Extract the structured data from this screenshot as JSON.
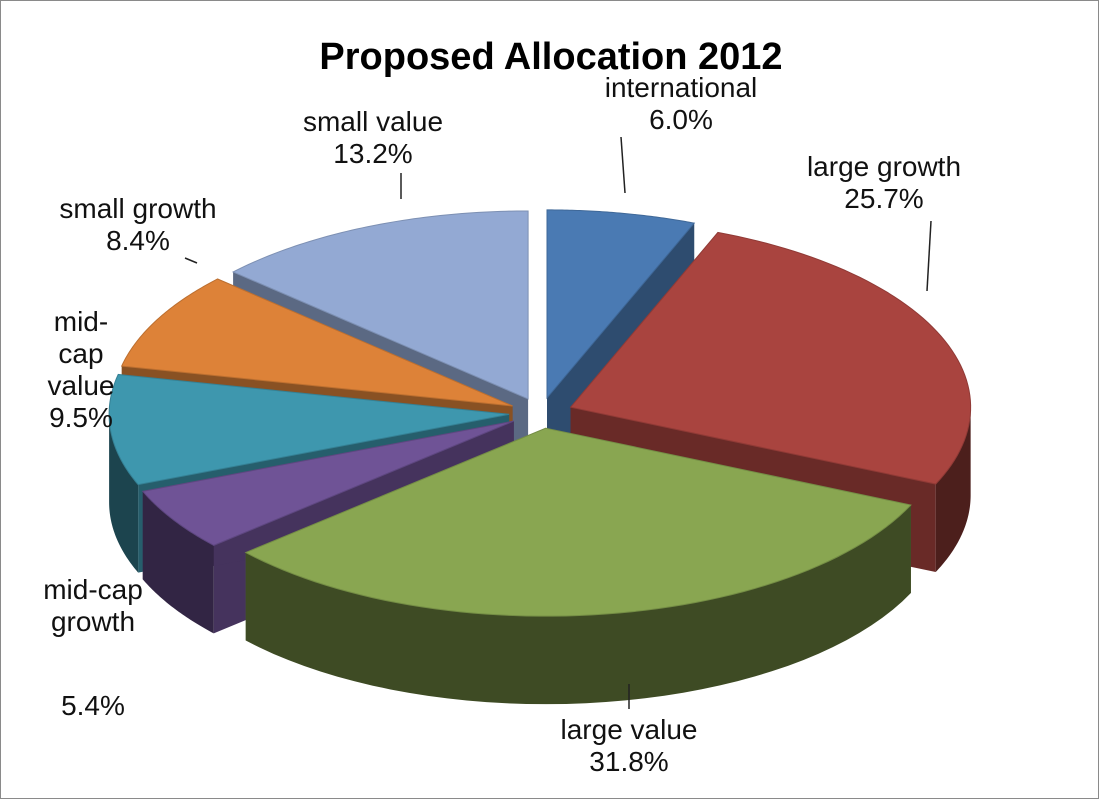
{
  "chart_data": {
    "type": "pie",
    "title": "Proposed Allocation 2012",
    "slices": [
      {
        "name": "international",
        "value": 6.0,
        "value_label": "6.0%",
        "label_lines": [
          "international"
        ],
        "color": "#4a7ab3"
      },
      {
        "name": "large growth",
        "value": 25.7,
        "value_label": "25.7%",
        "label_lines": [
          "large growth"
        ],
        "color": "#a9443f"
      },
      {
        "name": "large value",
        "value": 31.8,
        "value_label": "31.8%",
        "label_lines": [
          "large value"
        ],
        "color": "#89a651"
      },
      {
        "name": "mid-cap growth",
        "value": 5.4,
        "value_label": "5.4%",
        "label_lines": [
          "mid-cap",
          "growth"
        ],
        "color": "#6f5396"
      },
      {
        "name": "mid-cap value",
        "value": 9.5,
        "value_label": "9.5%",
        "label_lines": [
          "mid-",
          "cap",
          "value"
        ],
        "color": "#3e97ae"
      },
      {
        "name": "small growth",
        "value": 8.4,
        "value_label": "8.4%",
        "label_lines": [
          "small growth"
        ],
        "color": "#dd8238"
      },
      {
        "name": "small value",
        "value": 13.2,
        "value_label": "13.2%",
        "label_lines": [
          "small value"
        ],
        "color": "#93a9d3"
      }
    ],
    "exploded": true,
    "three_d": true,
    "legend": "none"
  }
}
